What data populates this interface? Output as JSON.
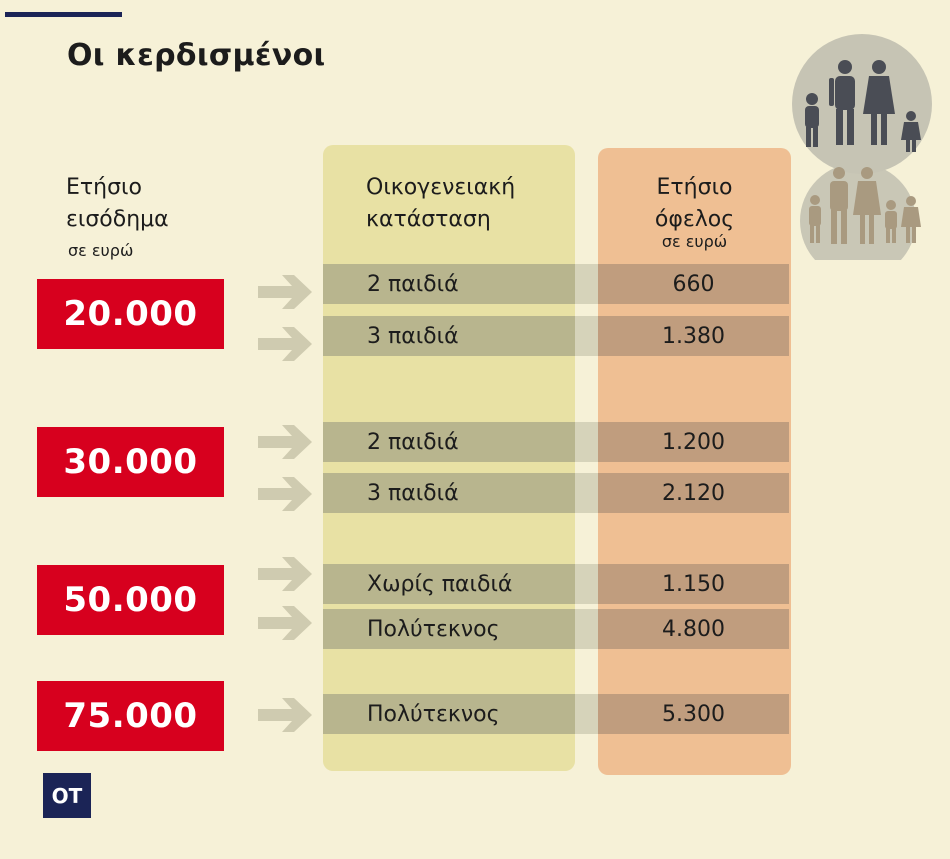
{
  "chart_data": {
    "type": "table",
    "title": "Οι κερδισμένοι",
    "columns": {
      "income": {
        "line1": "Ετήσιο",
        "line2": "εισόδημα",
        "unit": "σε ευρώ"
      },
      "family": {
        "line1": "Οικογενειακή",
        "line2": "κατάσταση"
      },
      "benefit": {
        "line1": "Ετήσιο",
        "line2": "όφελος",
        "unit": "σε ευρώ"
      }
    },
    "incomes": [
      "20.000",
      "30.000",
      "50.000",
      "75.000"
    ],
    "rows": [
      {
        "income": "20.000",
        "family": "2 παιδιά",
        "benefit": "660"
      },
      {
        "income": "20.000",
        "family": "3 παιδιά",
        "benefit": "1.380"
      },
      {
        "income": "30.000",
        "family": "2 παιδιά",
        "benefit": "1.200"
      },
      {
        "income": "30.000",
        "family": "3 παιδιά",
        "benefit": "2.120"
      },
      {
        "income": "50.000",
        "family": "Χωρίς παιδιά",
        "benefit": "1.150"
      },
      {
        "income": "50.000",
        "family": "Πολύτεκνος",
        "benefit": "4.800"
      },
      {
        "income": "75.000",
        "family": "Πολύτεκνος",
        "benefit": "5.300"
      }
    ]
  },
  "logo": "ΟΤ",
  "icons": [
    "family-of-four-icon",
    "family-of-five-icon"
  ],
  "colors": {
    "background": "#f6f1d7",
    "income_box": "#d7001e",
    "family_column": "#e8e1a4",
    "benefit_column": "#efbf93",
    "arrow": "#cfcbb0",
    "logo_bg": "#1b2456"
  }
}
